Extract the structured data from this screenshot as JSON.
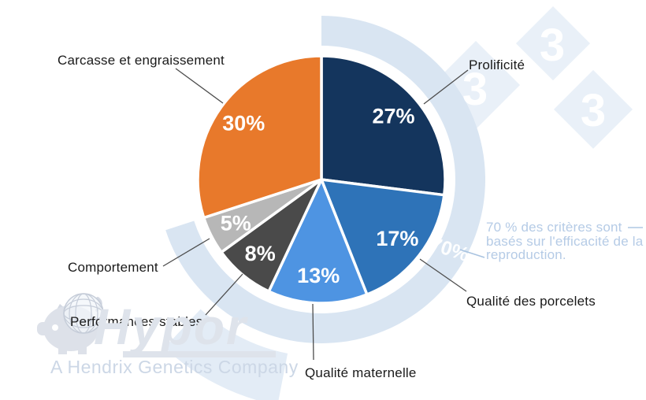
{
  "chart_data": {
    "type": "pie",
    "title": "",
    "slices": [
      {
        "label": "Prolificité",
        "value": 27,
        "color": "#14355d"
      },
      {
        "label": "Qualité des porcelets",
        "value": 17,
        "color": "#2e73b8"
      },
      {
        "label": "Qualité maternelle",
        "value": 13,
        "color": "#4e94e2"
      },
      {
        "label": "Performances stables",
        "value": 8,
        "color": "#4a4a4a"
      },
      {
        "label": "Comportement",
        "value": 5,
        "color": "#b7b7b7"
      },
      {
        "label": "Carcasse et engraissement",
        "value": 30,
        "color": "#e8792b"
      }
    ],
    "value_label_format": "percent",
    "ring": {
      "value": 70,
      "label": "70%",
      "color": "#d9e5f2",
      "note": "70 % des critères sont basés sur l'efficacité de la reproduction."
    },
    "legend_position": "callouts"
  },
  "watermarks": {
    "hypor": {
      "name": "Hypor",
      "tagline": "A Hendrix Genetics Company"
    },
    "pig333": {
      "digits": [
        "3",
        "3",
        "3"
      ],
      "diamond_color": "#e9f0f8"
    }
  },
  "decor": {
    "swoosh_color": "#e3ecf6",
    "leader_color": "#4d4d4d",
    "note_leader_color": "#a9c3e0"
  }
}
